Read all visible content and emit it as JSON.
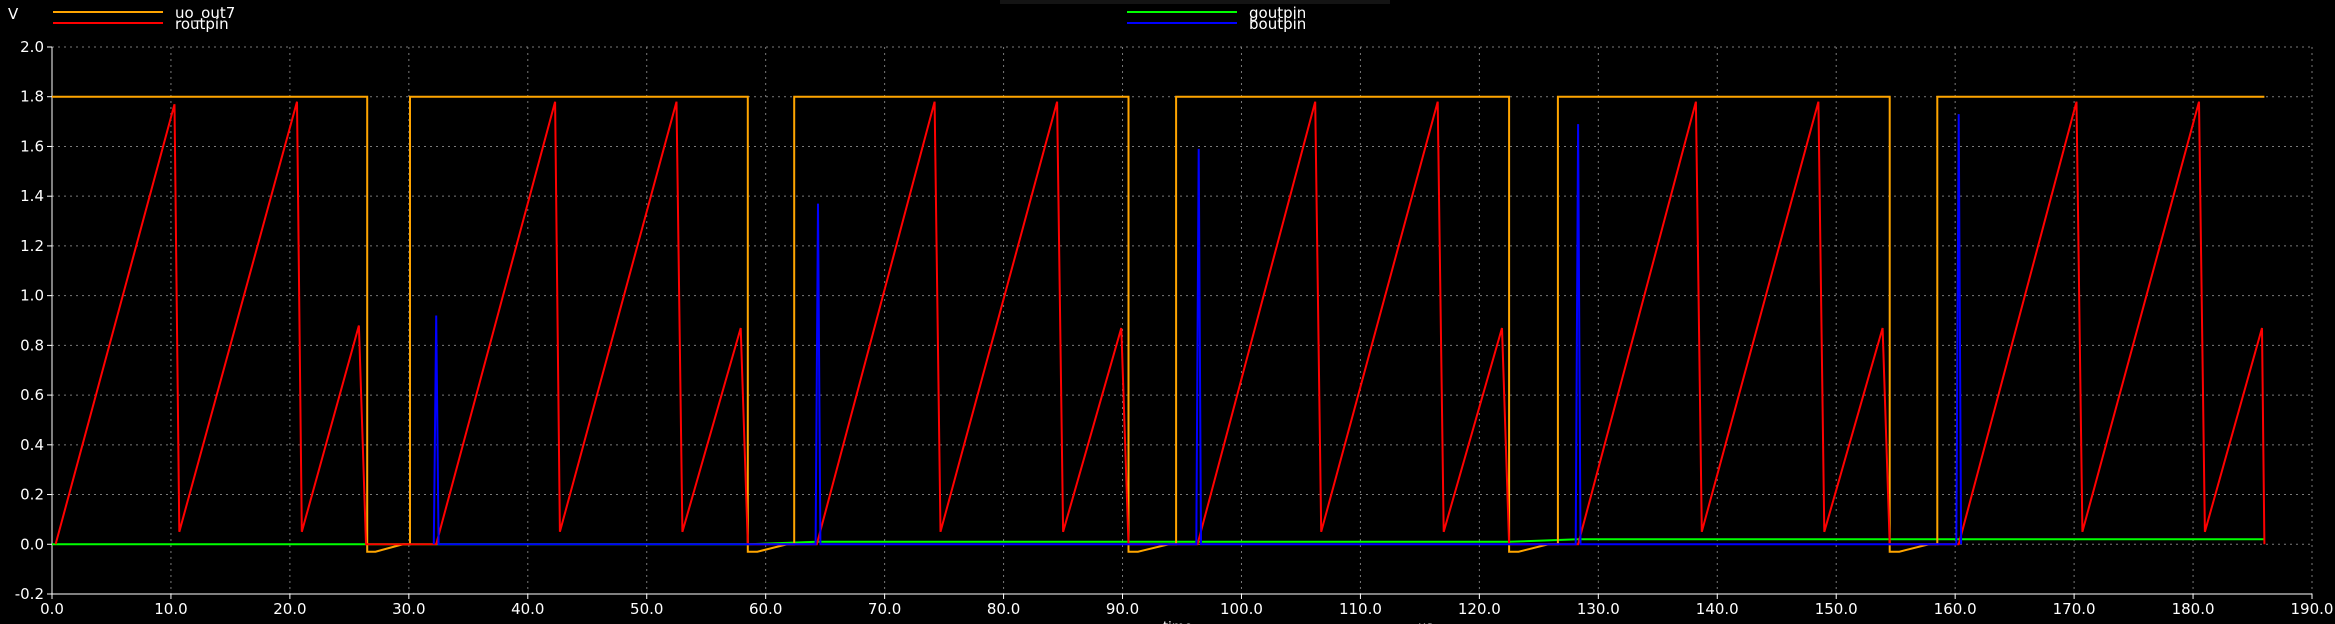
{
  "chart_data": {
    "type": "line",
    "title": "",
    "ylabel": "V",
    "xlabel": "time",
    "xunit": "us",
    "xlim": [
      0,
      190
    ],
    "ylim": [
      -0.2,
      2.0
    ],
    "xticks": [
      "0.0",
      "10.0",
      "20.0",
      "30.0",
      "40.0",
      "50.0",
      "60.0",
      "70.0",
      "80.0",
      "90.0",
      "100.0",
      "110.0",
      "120.0",
      "130.0",
      "140.0",
      "150.0",
      "160.0",
      "170.0",
      "180.0",
      "190.0"
    ],
    "yticks": [
      "-0.2",
      "0.0",
      "0.2",
      "0.4",
      "0.6",
      "0.8",
      "1.0",
      "1.2",
      "1.4",
      "1.6",
      "1.8",
      "2.0"
    ],
    "grid": true,
    "legend_position": "top",
    "colors": {
      "background": "#000000",
      "grid": "#7a7a7a",
      "text": "#ffffff",
      "uo_out7": "#ffa500",
      "routpin": "#ff0000",
      "goutpin": "#00ff00",
      "boutpin": "#0000ff"
    },
    "series": [
      {
        "name": "uo_out7",
        "color": "#ffa500",
        "x": [
          0,
          10,
          10,
          26.5,
          26.5,
          27.2,
          29.5,
          30.1,
          30.1,
          31.2,
          31.2,
          58.5,
          58.5,
          59.3,
          61.8,
          62.4,
          62.4,
          90.5,
          90.5,
          91.3,
          93.9,
          94.5,
          94.5,
          122.5,
          122.5,
          123.3,
          125.8,
          126.6,
          126.6,
          154.5,
          154.5,
          155.3,
          157.8,
          158.5,
          158.5,
          186
        ],
        "y": [
          1.8,
          1.8,
          1.8,
          1.8,
          -0.03,
          -0.03,
          0.0,
          0.0,
          1.8,
          1.8,
          1.8,
          1.8,
          -0.03,
          -0.03,
          0.0,
          0.0,
          1.8,
          1.8,
          -0.03,
          -0.03,
          0.0,
          0.0,
          1.8,
          1.8,
          -0.03,
          -0.03,
          0.0,
          0.0,
          1.8,
          1.8,
          -0.03,
          -0.03,
          0.0,
          0.0,
          1.8,
          1.8
        ]
      },
      {
        "name": "routpin",
        "color": "#ff0000",
        "x": [
          0.3,
          10.3,
          10.7,
          20.6,
          21.0,
          25.8,
          26.4,
          30.1,
          32.3,
          42.3,
          42.7,
          52.5,
          53.0,
          57.9,
          58.5,
          62.3,
          64.3,
          74.2,
          74.7,
          84.5,
          85.0,
          89.9,
          90.5,
          94.3,
          96.3,
          106.2,
          106.7,
          116.5,
          117.0,
          121.9,
          122.5,
          126.3,
          128.3,
          138.2,
          138.7,
          148.5,
          149.0,
          153.9,
          154.5,
          158.3,
          160.3,
          170.2,
          170.7,
          180.5,
          181.0,
          185.8,
          186.0
        ],
        "y": [
          0.0,
          1.77,
          0.05,
          1.78,
          0.05,
          0.88,
          0.0,
          0.0,
          0.0,
          1.78,
          0.05,
          1.78,
          0.05,
          0.87,
          0.0,
          0.0,
          0.0,
          1.78,
          0.05,
          1.78,
          0.05,
          0.87,
          0.0,
          0.0,
          0.0,
          1.78,
          0.05,
          1.78,
          0.05,
          0.87,
          0.0,
          0.0,
          0.0,
          1.78,
          0.05,
          1.78,
          0.05,
          0.87,
          0.0,
          0.0,
          0.0,
          1.78,
          0.05,
          1.78,
          0.05,
          0.87,
          0.0
        ]
      },
      {
        "name": "goutpin",
        "color": "#00ff00",
        "x": [
          0,
          26.5,
          32.3,
          58.5,
          64.3,
          90.5,
          96.3,
          122.5,
          128.3,
          154.5,
          160.3,
          186
        ],
        "y": [
          0.0,
          0.0,
          0.0,
          0.0,
          0.01,
          0.01,
          0.01,
          0.01,
          0.02,
          0.02,
          0.02,
          0.02
        ]
      },
      {
        "name": "boutpin",
        "color": "#0000ff",
        "x": [
          32.1,
          32.3,
          32.5,
          64.2,
          64.4,
          64.6,
          96.2,
          96.4,
          96.6,
          128.1,
          128.3,
          128.5,
          160.1,
          160.3,
          160.5
        ],
        "y": [
          0.0,
          0.92,
          0.0,
          0.0,
          1.37,
          0.0,
          0.0,
          1.59,
          0.0,
          0.0,
          1.69,
          0.0,
          0.0,
          1.73,
          0.0
        ]
      }
    ]
  }
}
